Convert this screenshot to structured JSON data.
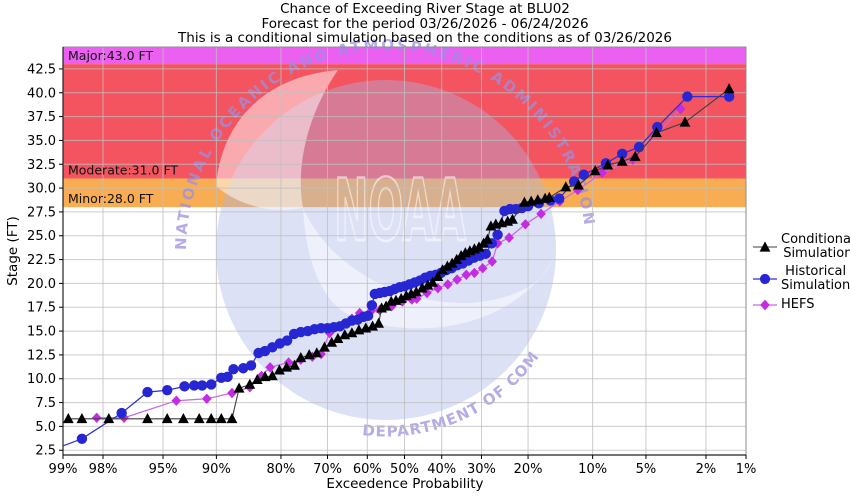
{
  "chart_data": {
    "type": "line",
    "title": "Chance of Exceeding River Stage at BLU02",
    "subtitle": "Forecast for the period 03/26/2026 - 06/24/2026",
    "subtitle2": "This is a conditional simulation based on the conditions as of 03/26/2026",
    "xlabel": "Exceedence Probability",
    "ylabel": "Stage (FT)",
    "x_scale": "probit",
    "x_axis_direction": "high-probability-left",
    "x_ticks_percent": [
      99,
      98,
      95,
      90,
      80,
      70,
      60,
      50,
      40,
      30,
      20,
      10,
      5,
      2,
      1
    ],
    "y_ticks": [
      2.5,
      5.0,
      7.5,
      10.0,
      12.5,
      15.0,
      17.5,
      20.0,
      22.5,
      25.0,
      27.5,
      30.0,
      32.5,
      35.0,
      37.5,
      40.0,
      42.5
    ],
    "ylim": [
      2.0,
      44.8
    ],
    "grid_color": "#bfbfbf",
    "flood_bands": [
      {
        "name": "Major",
        "label": "Major:43.0 FT",
        "stage_ft": 43.0,
        "from": 43.0,
        "to": 44.8,
        "color": "#e94ff0"
      },
      {
        "name": "Moderate",
        "label": "Moderate:31.0 FT",
        "stage_ft": 31.0,
        "from": 31.0,
        "to": 43.0,
        "color": "#f3414e"
      },
      {
        "name": "Minor",
        "label": "Minor:28.0 FT",
        "stage_ft": 28.0,
        "from": 28.0,
        "to": 31.0,
        "color": "#f8a440"
      }
    ],
    "series": [
      {
        "name": "Conditional Simulation",
        "legend_lines": [
          "Conditional",
          "Simulation"
        ],
        "marker": "triangle",
        "color": "#000000",
        "line_color": "#3d3d3d",
        "points": [
          [
            98.9,
            5.8
          ],
          [
            98.6,
            5.8
          ],
          [
            97.8,
            5.8
          ],
          [
            96,
            5.8
          ],
          [
            94.7,
            5.8
          ],
          [
            93.4,
            5.8
          ],
          [
            91.9,
            5.8
          ],
          [
            90.6,
            5.8
          ],
          [
            89.4,
            5.8
          ],
          [
            88,
            5.8
          ],
          [
            87,
            9.0
          ],
          [
            85.4,
            9.4
          ],
          [
            84.2,
            9.9
          ],
          [
            82.9,
            10.2
          ],
          [
            81.6,
            10.3
          ],
          [
            80.3,
            10.9
          ],
          [
            78.9,
            11.2
          ],
          [
            77.3,
            11.4
          ],
          [
            76,
            12.2
          ],
          [
            74.2,
            12.5
          ],
          [
            72.5,
            12.7
          ],
          [
            70.7,
            13.3
          ],
          [
            69,
            13.8
          ],
          [
            67.5,
            14.2
          ],
          [
            65.8,
            14.6
          ],
          [
            64,
            14.8
          ],
          [
            62.2,
            15.1
          ],
          [
            60.4,
            15.3
          ],
          [
            58.6,
            15.5
          ],
          [
            57,
            15.8
          ],
          [
            56.2,
            17.4
          ],
          [
            55,
            17.6
          ],
          [
            53.6,
            18.1
          ],
          [
            52.3,
            18.2
          ],
          [
            50.9,
            18.4
          ],
          [
            49.5,
            18.7
          ],
          [
            48.2,
            18.9
          ],
          [
            46.8,
            19.1
          ],
          [
            45.2,
            19.5
          ],
          [
            43.7,
            19.8
          ],
          [
            42.4,
            20.1
          ],
          [
            41,
            20.7
          ],
          [
            39.8,
            21.4
          ],
          [
            38.5,
            21.8
          ],
          [
            37.3,
            22.1
          ],
          [
            36.1,
            22.5
          ],
          [
            35,
            22.9
          ],
          [
            33.9,
            23.2
          ],
          [
            32.8,
            23.4
          ],
          [
            31.7,
            23.6
          ],
          [
            30.6,
            23.8
          ],
          [
            29.5,
            24.2
          ],
          [
            28.6,
            24.6
          ],
          [
            27.8,
            26.0
          ],
          [
            26.7,
            26.2
          ],
          [
            25.4,
            26.35
          ],
          [
            24.1,
            26.5
          ],
          [
            23.1,
            26.7
          ],
          [
            20.7,
            28.5
          ],
          [
            19.4,
            28.6
          ],
          [
            18.2,
            28.75
          ],
          [
            16.9,
            28.9
          ],
          [
            16.2,
            29.0
          ],
          [
            13.6,
            30.1
          ],
          [
            11.8,
            30.3
          ],
          [
            9.7,
            31.8
          ],
          [
            8.3,
            32.4
          ],
          [
            6.9,
            32.8
          ],
          [
            5.8,
            33.3
          ],
          [
            4.3,
            35.8
          ],
          [
            2.8,
            36.9
          ],
          [
            1.35,
            40.4
          ]
        ]
      },
      {
        "name": "Historical Simulation",
        "legend_lines": [
          "Historical",
          "Simulation"
        ],
        "marker": "circle",
        "color": "#2626d2",
        "line_color": "#2e2ed6",
        "points": [
          [
            99.3,
            2.2,
            1
          ],
          [
            98.6,
            3.7
          ],
          [
            97.3,
            6.4
          ],
          [
            96,
            8.6
          ],
          [
            94.7,
            8.8
          ],
          [
            93.3,
            9.2
          ],
          [
            92.4,
            9.3
          ],
          [
            91.6,
            9.3
          ],
          [
            90.6,
            9.4
          ],
          [
            89.4,
            10.1
          ],
          [
            88.6,
            10.2
          ],
          [
            87.8,
            11.0
          ],
          [
            86.4,
            11.1
          ],
          [
            85.2,
            11.4
          ],
          [
            84,
            12.7
          ],
          [
            82.9,
            12.9
          ],
          [
            81.6,
            13.3
          ],
          [
            80.2,
            13.7
          ],
          [
            78.8,
            14.0
          ],
          [
            77.4,
            14.7
          ],
          [
            76,
            14.9
          ],
          [
            74.5,
            15.0
          ],
          [
            73,
            15.2
          ],
          [
            71.5,
            15.3
          ],
          [
            70,
            15.3
          ],
          [
            68.5,
            15.4
          ],
          [
            67,
            15.5
          ],
          [
            65.5,
            15.8
          ],
          [
            64,
            16.1
          ],
          [
            62.5,
            16.2
          ],
          [
            61,
            16.5
          ],
          [
            59.8,
            16.6
          ],
          [
            58.8,
            17.7
          ],
          [
            58,
            18.9
          ],
          [
            56.7,
            19.0
          ],
          [
            55.4,
            19.1
          ],
          [
            54,
            19.2
          ],
          [
            52.7,
            19.4
          ],
          [
            51.3,
            19.6
          ],
          [
            50,
            19.7
          ],
          [
            48.6,
            19.9
          ],
          [
            47.2,
            20.1
          ],
          [
            45.8,
            20.3
          ],
          [
            44.4,
            20.6
          ],
          [
            43,
            20.8
          ],
          [
            41.6,
            20.9
          ],
          [
            40.2,
            21.1
          ],
          [
            38.8,
            21.4
          ],
          [
            37.4,
            21.6
          ],
          [
            36,
            21.9
          ],
          [
            34.6,
            22.1
          ],
          [
            33.2,
            22.4
          ],
          [
            31.8,
            22.7
          ],
          [
            30.4,
            22.9
          ],
          [
            29,
            23.1
          ],
          [
            27.6,
            24.2
          ],
          [
            26.3,
            25.1
          ],
          [
            24.8,
            27.6
          ],
          [
            23.6,
            27.8
          ],
          [
            22.4,
            27.8
          ],
          [
            21.2,
            27.9
          ],
          [
            20,
            28.1
          ],
          [
            18,
            28.4
          ],
          [
            16,
            28.7
          ],
          [
            14.6,
            28.9
          ],
          [
            12.4,
            30.7
          ],
          [
            11.1,
            31.4
          ],
          [
            8.5,
            32.6
          ],
          [
            6.9,
            33.6
          ],
          [
            5.5,
            34.3
          ],
          [
            4.25,
            36.4
          ],
          [
            2.7,
            39.6
          ],
          [
            1.35,
            39.6
          ]
        ]
      },
      {
        "name": "HEFS",
        "legend_lines": [
          "HEFS"
        ],
        "marker": "diamond",
        "color": "#c32ce0",
        "line_color": "#c768e8",
        "points": [
          [
            98.2,
            5.9
          ],
          [
            97.2,
            5.9
          ],
          [
            94,
            7.7
          ],
          [
            91.1,
            7.9
          ],
          [
            88,
            8.5
          ],
          [
            85.4,
            9.1
          ],
          [
            83.5,
            10.3
          ],
          [
            82,
            11.2
          ],
          [
            78.5,
            11.7
          ],
          [
            76,
            12.0
          ],
          [
            73.5,
            12.3
          ],
          [
            71.5,
            12.6
          ],
          [
            69.5,
            14.8
          ],
          [
            66.7,
            15.5
          ],
          [
            64,
            16.3
          ],
          [
            62,
            16.9
          ],
          [
            59,
            17.1
          ],
          [
            56.7,
            17.2
          ],
          [
            53.5,
            17.6
          ],
          [
            50.6,
            18.1
          ],
          [
            48,
            18.3
          ],
          [
            46.7,
            18.4
          ],
          [
            43.9,
            19.0
          ],
          [
            41,
            19.5
          ],
          [
            38.4,
            19.9
          ],
          [
            36,
            20.4
          ],
          [
            33.7,
            20.9
          ],
          [
            31.7,
            21.1
          ],
          [
            29.7,
            21.6
          ],
          [
            27.5,
            22.3
          ],
          [
            26.3,
            24.2
          ],
          [
            23.8,
            24.8
          ],
          [
            20.5,
            26.2
          ],
          [
            17.6,
            27.3
          ],
          [
            14.5,
            28.6
          ],
          [
            11.9,
            29.8
          ],
          [
            8.9,
            31.6
          ],
          [
            6,
            33.0
          ],
          [
            3,
            38.3
          ]
        ]
      }
    ],
    "watermark": {
      "arc_top": "NATIONAL OCEANIC AND ATMOSPHERIC ADMINISTRATION",
      "arc_bottom": "DEPARTMENT OF COMMERCE",
      "center_text": "NOAA"
    }
  }
}
